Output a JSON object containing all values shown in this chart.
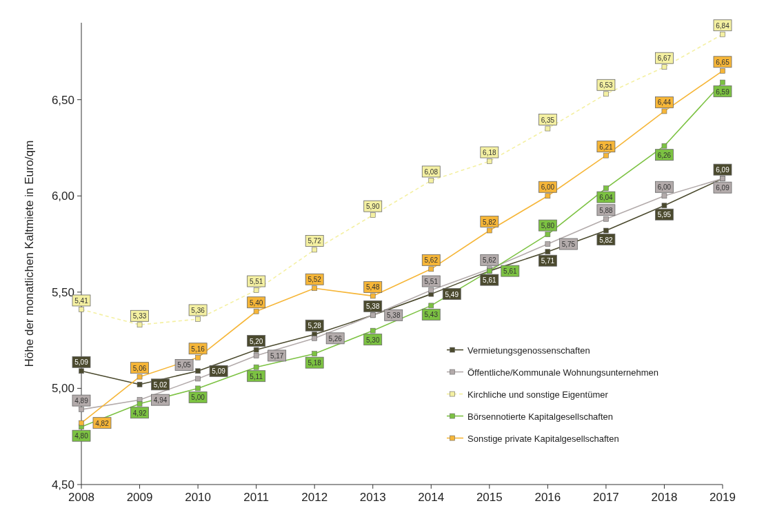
{
  "chart_data": {
    "type": "line",
    "ylabel": "Höhe der monatlichen Kaltmiete in Euro/qm",
    "x": [
      2008,
      2009,
      2010,
      2011,
      2012,
      2013,
      2014,
      2015,
      2016,
      2017,
      2018,
      2019
    ],
    "xlim": [
      2008,
      2019
    ],
    "xticks": [
      2008,
      2009,
      2010,
      2011,
      2012,
      2013,
      2014,
      2015,
      2016,
      2017,
      2018,
      2019
    ],
    "ylim": [
      4.5,
      6.9
    ],
    "yticks": [
      {
        "value": 4.5,
        "label": "4,50"
      },
      {
        "value": 5,
        "label": "5,00"
      },
      {
        "value": 5.5,
        "label": "5,50"
      },
      {
        "value": 6,
        "label": "6,00"
      },
      {
        "value": 6.5,
        "label": "6,50"
      }
    ],
    "grid": false,
    "legend": "bottom right",
    "marker": "square",
    "series": [
      {
        "name": "Vermietungsgenossenschaften",
        "color": "#4b4a2e",
        "line_style": "solid",
        "values": [
          5.09,
          5.02,
          5.09,
          5.2,
          5.28,
          5.38,
          5.49,
          5.61,
          5.71,
          5.82,
          5.95,
          6.09
        ],
        "value_labels": [
          "5,09",
          "5,02",
          "5,09",
          "5,20",
          "5,28",
          "5,38",
          "5,49",
          "5,61",
          "5,71",
          "5,82",
          "5,95",
          "6,09"
        ]
      },
      {
        "name": "Öffentliche/Kommunale Wohnungsunternehmen",
        "color": "#b3abab",
        "line_style": "solid",
        "values": [
          4.89,
          4.94,
          5.05,
          5.17,
          5.26,
          5.38,
          5.51,
          5.62,
          5.75,
          5.88,
          6.0,
          6.09
        ],
        "value_labels": [
          "4,89",
          "4,94",
          "5,05",
          "5,17",
          "5,26",
          "5,38",
          "5,51",
          "5,62",
          "5,75",
          "5,88",
          "6,00",
          "6,09"
        ]
      },
      {
        "name": "Kirchliche und sonstige Eigentümer",
        "color": "#f4f0a2",
        "line_style": "dashed",
        "values": [
          5.41,
          5.33,
          5.36,
          5.51,
          5.72,
          5.9,
          6.08,
          6.18,
          6.35,
          6.53,
          6.67,
          6.84
        ],
        "value_labels": [
          "5,41",
          "5,33",
          "5,36",
          "5,51",
          "5,72",
          "5,90",
          "6,08",
          "6,18",
          "6,35",
          "6,53",
          "6,67",
          "6,84"
        ]
      },
      {
        "name": "Börsennotierte Kapitalgesellschaften",
        "color": "#7cc242",
        "line_style": "solid",
        "values": [
          4.8,
          4.92,
          5.0,
          5.11,
          5.18,
          5.3,
          5.43,
          5.61,
          5.8,
          6.04,
          6.26,
          6.59
        ],
        "value_labels": [
          "4,80",
          "4,92",
          "5,00",
          "5,11",
          "5,18",
          "5,30",
          "5,43",
          "5,61",
          "5,80",
          "6,04",
          "6,26",
          "6,59"
        ]
      },
      {
        "name": "Sonstige private Kapitalgesellschaften",
        "color": "#f6b638",
        "line_style": "solid",
        "values": [
          4.82,
          5.06,
          5.16,
          5.4,
          5.52,
          5.48,
          5.62,
          5.82,
          6.0,
          6.21,
          6.44,
          6.65
        ],
        "value_labels": [
          "4,82",
          "5,06",
          "5,16",
          "5,40",
          "5,52",
          "5,48",
          "5,62",
          "5,82",
          "6,00",
          "6,21",
          "6,44",
          "6,65"
        ]
      }
    ]
  }
}
